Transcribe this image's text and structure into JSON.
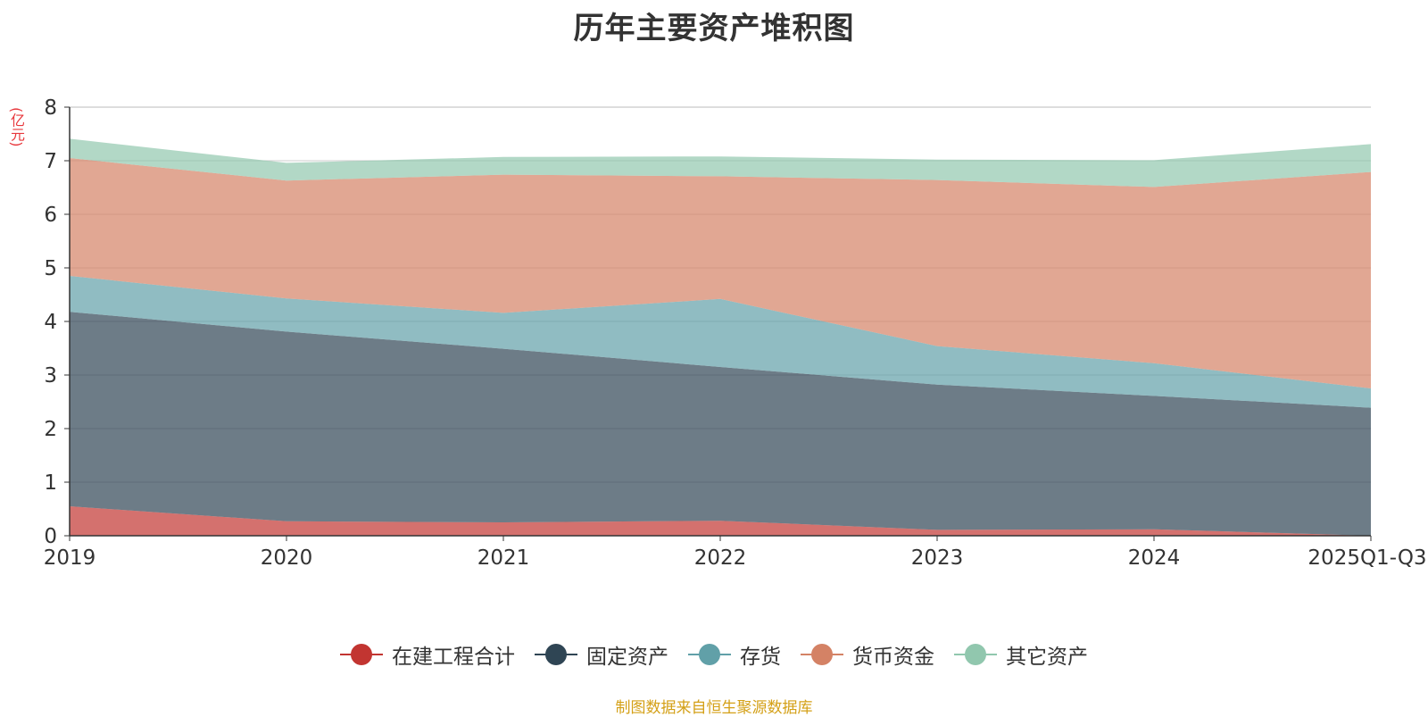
{
  "chart_data": {
    "type": "area",
    "stacked": true,
    "title": "历年主要资产堆积图",
    "ylabel": "(亿元)",
    "xlabel": "",
    "ylim": [
      0,
      8
    ],
    "yticks": [
      0,
      1,
      2,
      3,
      4,
      5,
      6,
      7,
      8
    ],
    "categories": [
      "2019",
      "2020",
      "2021",
      "2022",
      "2023",
      "2024",
      "2025Q1-Q3"
    ],
    "series": [
      {
        "name": "在建工程合计",
        "color": "#c23531",
        "values": [
          0.55,
          0.27,
          0.25,
          0.28,
          0.11,
          0.12,
          0.0
        ]
      },
      {
        "name": "固定资产",
        "color": "#2f4554",
        "values": [
          3.63,
          3.54,
          3.24,
          2.87,
          2.71,
          2.49,
          2.39
        ]
      },
      {
        "name": "存货",
        "color": "#61a0a8",
        "values": [
          0.67,
          0.62,
          0.67,
          1.27,
          0.72,
          0.61,
          0.36
        ]
      },
      {
        "name": "货币资金",
        "color": "#d48265",
        "values": [
          2.2,
          2.2,
          2.58,
          2.29,
          3.1,
          3.29,
          4.04
        ]
      },
      {
        "name": "其它资产",
        "color": "#91c7ae",
        "values": [
          0.36,
          0.33,
          0.33,
          0.37,
          0.38,
          0.5,
          0.52
        ]
      }
    ],
    "legend_position": "bottom-center",
    "grid": true
  },
  "footer": {
    "source": "制图数据来自恒生聚源数据库"
  }
}
